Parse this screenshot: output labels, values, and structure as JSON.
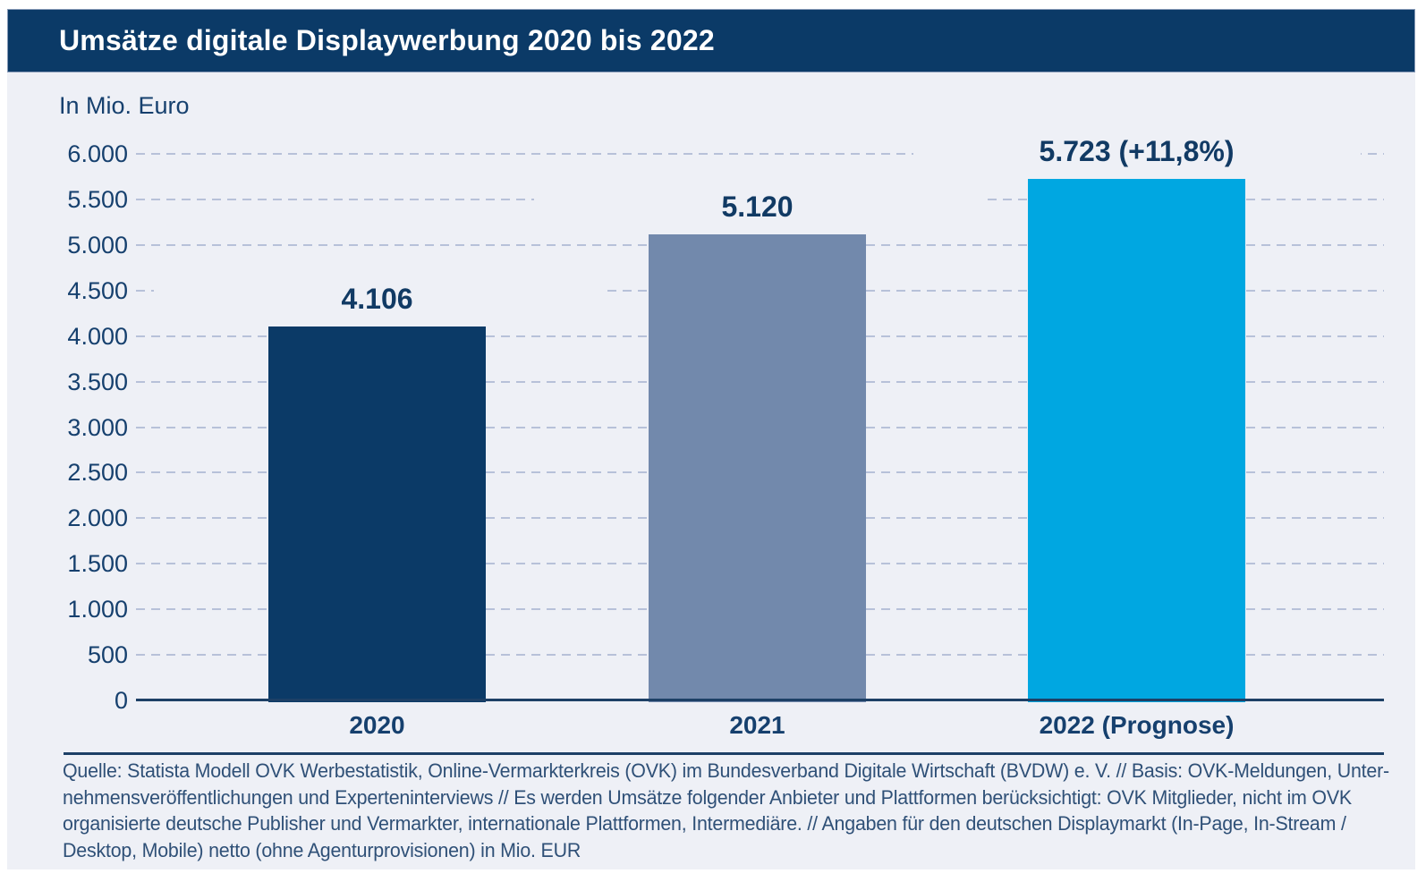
{
  "header": {
    "title": "Umsätze digitale Displaywerbung 2020 bis 2022"
  },
  "chart_data": {
    "type": "bar",
    "title": "Umsätze digitale Displaywerbung 2020 bis 2022",
    "ylabel": "In Mio. Euro",
    "categories": [
      "2020",
      "2021",
      "2022 (Prognose)"
    ],
    "values": [
      4106,
      5120,
      5723
    ],
    "bar_value_labels": [
      "4.106",
      "5.120",
      "5.723 (+11,8%)"
    ],
    "bar_colors": [
      "#0b3a67",
      "#7289ac",
      "#00a7e1"
    ],
    "ylim": [
      0,
      6000
    ],
    "ytick_interval": 500,
    "ytick_labels": [
      "0",
      "500",
      "1.000",
      "1.500",
      "2.000",
      "2.500",
      "3.000",
      "3.500",
      "4.000",
      "4.500",
      "5.000",
      "5.500",
      "6.000"
    ],
    "grid": "horizontal-dashed",
    "legend": "none"
  },
  "footer": {
    "source_lines": [
      "Quelle: Statista Modell OVK Werbestatistik, Online-Vermarkterkreis (OVK) im Bundesverband Digitale Wirtschaft (BVDW) e. V. // Basis: OVK-Meldungen, Unter-",
      "nehmensveröffentlichungen und Experteninterviews // Es werden Umsätze folgender Anbieter und Plattformen berücksichtigt: OVK Mitglieder, nicht im OVK",
      "organisierte deutsche Publisher und Vermarkter, internationale Plattformen, Intermediäre. // Angaben für den deutschen Displaymarkt (In-Page, In-Stream /",
      "Desktop, Mobile) netto (ohne Agenturprovisionen) in Mio. EUR"
    ]
  },
  "colors": {
    "header_bg": "#0b3a67",
    "card_bg": "#eef0f6",
    "gridline": "#b7c1d9",
    "axis": "#1d4066",
    "tick_text": "#16406e",
    "bar_2020": "#0b3a67",
    "bar_2021": "#7289ac",
    "bar_2022": "#00a7e1",
    "source_text": "#2f5077"
  }
}
